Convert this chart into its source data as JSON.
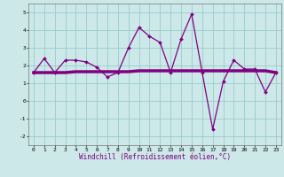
{
  "title": "",
  "xlabel": "Windchill (Refroidissement éolien,°C)",
  "ylabel": "",
  "bg_color": "#cce8e8",
  "line_color": "#800080",
  "grid_color": "#99cccc",
  "line1_x": [
    0,
    1,
    2,
    3,
    4,
    5,
    6,
    7,
    8,
    9,
    10,
    11,
    12,
    13,
    14,
    15,
    16,
    17,
    18,
    19,
    20,
    21,
    22,
    23
  ],
  "line1_y": [
    1.6,
    2.4,
    1.6,
    2.3,
    2.3,
    2.2,
    1.9,
    1.35,
    1.6,
    3.0,
    4.15,
    3.65,
    3.3,
    1.6,
    3.5,
    4.9,
    1.6,
    -1.6,
    1.1,
    2.3,
    1.8,
    1.8,
    0.5,
    1.6
  ],
  "line2_x": [
    0,
    1,
    2,
    3,
    4,
    5,
    6,
    7,
    8,
    9,
    10,
    11,
    12,
    13,
    14,
    15,
    16,
    17,
    18,
    19,
    20,
    21,
    22,
    23
  ],
  "line2_y": [
    1.6,
    1.6,
    1.6,
    1.6,
    1.65,
    1.65,
    1.65,
    1.65,
    1.65,
    1.65,
    1.7,
    1.7,
    1.7,
    1.7,
    1.7,
    1.7,
    1.7,
    1.7,
    1.7,
    1.7,
    1.7,
    1.7,
    1.7,
    1.6
  ],
  "ylim": [
    -2.5,
    5.5
  ],
  "xlim": [
    -0.5,
    23.5
  ],
  "yticks": [
    -2,
    -1,
    0,
    1,
    2,
    3,
    4,
    5
  ],
  "xticks": [
    0,
    1,
    2,
    3,
    4,
    5,
    6,
    7,
    8,
    9,
    10,
    11,
    12,
    13,
    14,
    15,
    16,
    17,
    18,
    19,
    20,
    21,
    22,
    23
  ],
  "tick_fontsize": 4.5,
  "xlabel_fontsize": 5.5,
  "marker": "D",
  "marker_size": 2.0,
  "linewidth": 0.9,
  "line2_linewidth": 2.5
}
